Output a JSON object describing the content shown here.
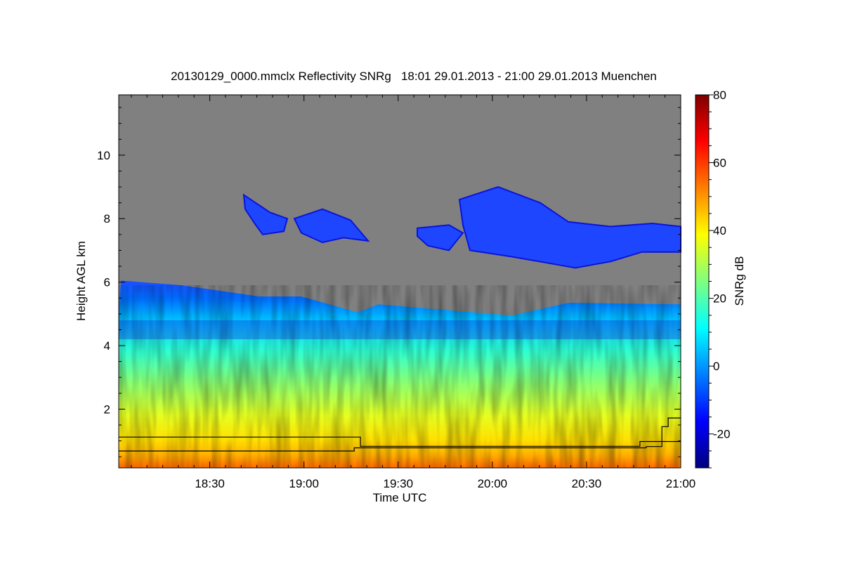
{
  "chart_data": {
    "type": "heatmap",
    "title": "20130129_0000.mmclx Reflectivity SNRg   18:01 29.01.2013 - 21:00 29.01.2013 Muenchen",
    "xlabel": "Time UTC",
    "ylabel": "Height AGL km",
    "colorbar_label": "SNRg dB",
    "xlim": [
      "18:01",
      "21:00"
    ],
    "ylim": [
      0.15,
      11.9
    ],
    "x_ticks": [
      "18:30",
      "19:00",
      "19:30",
      "20:00",
      "20:30",
      "21:00"
    ],
    "y_ticks": [
      2,
      4,
      6,
      8,
      10
    ],
    "colorbar_range": [
      -30,
      80
    ],
    "colorbar_ticks": [
      -20,
      0,
      20,
      40,
      60,
      80
    ],
    "colormap": [
      "#00007f",
      "#0000ff",
      "#007fff",
      "#00ffff",
      "#7fff7f",
      "#ffff00",
      "#ff7f00",
      "#ff0000",
      "#7f0000"
    ],
    "background_color": "#808080",
    "boundary_lines": [
      {
        "points": [
          [
            "18:01",
            1.12
          ],
          [
            "19:18",
            1.12
          ],
          [
            "19:18",
            0.83
          ],
          [
            "20:47",
            0.83
          ],
          [
            "20:47",
            0.98
          ],
          [
            "21:00",
            0.98
          ]
        ]
      },
      {
        "points": [
          [
            "18:01",
            0.68
          ],
          [
            "19:16",
            0.68
          ],
          [
            "19:16",
            0.78
          ],
          [
            "20:49",
            0.78
          ],
          [
            "20:49",
            0.82
          ],
          [
            "20:54",
            0.82
          ],
          [
            "20:54",
            1.45
          ],
          [
            "20:56",
            1.45
          ],
          [
            "20:56",
            1.72
          ],
          [
            "21:00",
            1.72
          ]
        ]
      }
    ]
  }
}
